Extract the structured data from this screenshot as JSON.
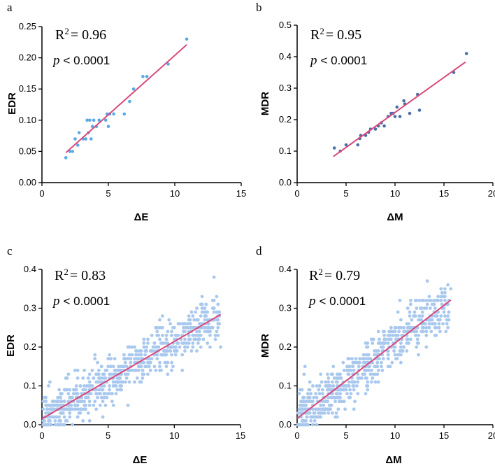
{
  "chart_data": [
    {
      "type": "scatter",
      "panel": "a",
      "xlabel": "ΔE",
      "ylabel": "EDR",
      "xlim": [
        0,
        15
      ],
      "ylim": [
        0,
        0.25
      ],
      "xticks": [
        0,
        5,
        10,
        15
      ],
      "yticks": [
        0.0,
        0.05,
        0.1,
        0.15,
        0.2,
        0.25
      ],
      "ytick_labels": [
        "0.00",
        "0.05",
        "0.10",
        "0.15",
        "0.20",
        "0.25"
      ],
      "r2_label": "R",
      "r2_sup": "2",
      "r2_value": "= 0.96",
      "p_symbol": "p",
      "p_text": "< 0.0001",
      "point_color": "#5aa9e6",
      "fit_color": "#d9497b",
      "fit": {
        "x": [
          1.8,
          10.9
        ],
        "y": [
          0.048,
          0.221
        ]
      },
      "points": [
        [
          1.8,
          0.04
        ],
        [
          2.1,
          0.05
        ],
        [
          2.3,
          0.05
        ],
        [
          2.5,
          0.07
        ],
        [
          2.7,
          0.06
        ],
        [
          2.8,
          0.08
        ],
        [
          3.1,
          0.07
        ],
        [
          3.3,
          0.07
        ],
        [
          3.4,
          0.1
        ],
        [
          3.5,
          0.08
        ],
        [
          3.6,
          0.1
        ],
        [
          3.7,
          0.07
        ],
        [
          3.8,
          0.09
        ],
        [
          3.9,
          0.1
        ],
        [
          4.1,
          0.09
        ],
        [
          4.3,
          0.1
        ],
        [
          4.8,
          0.1
        ],
        [
          4.9,
          0.11
        ],
        [
          5.0,
          0.09
        ],
        [
          5.1,
          0.11
        ],
        [
          5.4,
          0.11
        ],
        [
          6.2,
          0.11
        ],
        [
          6.6,
          0.13
        ],
        [
          6.9,
          0.15
        ],
        [
          7.6,
          0.17
        ],
        [
          7.9,
          0.17
        ],
        [
          9.5,
          0.19
        ],
        [
          10.9,
          0.23
        ]
      ]
    },
    {
      "type": "scatter",
      "panel": "b",
      "xlabel": "ΔM",
      "ylabel": "MDR",
      "xlim": [
        0,
        20
      ],
      "ylim": [
        0,
        0.5
      ],
      "xticks": [
        0,
        5,
        10,
        15,
        20
      ],
      "yticks": [
        0.0,
        0.1,
        0.2,
        0.3,
        0.4,
        0.5
      ],
      "ytick_labels": [
        "0.0",
        "0.1",
        "0.2",
        "0.3",
        "0.4",
        "0.5"
      ],
      "r2_label": "R",
      "r2_sup": "2",
      "r2_value": "= 0.95",
      "p_symbol": "p",
      "p_text": "< 0.0001",
      "point_color": "#4a6fa5",
      "fit_color": "#d9497b",
      "fit": {
        "x": [
          3.7,
          17.2
        ],
        "y": [
          0.083,
          0.383
        ]
      },
      "points": [
        [
          3.8,
          0.11
        ],
        [
          4.4,
          0.1
        ],
        [
          5.0,
          0.12
        ],
        [
          6.2,
          0.12
        ],
        [
          6.4,
          0.14
        ],
        [
          6.5,
          0.15
        ],
        [
          7.0,
          0.15
        ],
        [
          7.3,
          0.16
        ],
        [
          7.5,
          0.17
        ],
        [
          8.0,
          0.17
        ],
        [
          8.3,
          0.18
        ],
        [
          8.6,
          0.19
        ],
        [
          8.9,
          0.18
        ],
        [
          9.3,
          0.21
        ],
        [
          9.6,
          0.22
        ],
        [
          9.8,
          0.22
        ],
        [
          10.0,
          0.21
        ],
        [
          10.2,
          0.24
        ],
        [
          10.5,
          0.21
        ],
        [
          10.9,
          0.26
        ],
        [
          11.0,
          0.25
        ],
        [
          11.5,
          0.22
        ],
        [
          12.3,
          0.28
        ],
        [
          12.5,
          0.23
        ],
        [
          16.0,
          0.35
        ],
        [
          17.3,
          0.41
        ]
      ]
    },
    {
      "type": "scatter",
      "panel": "c",
      "xlabel": "ΔE",
      "ylabel": "EDR",
      "xlim": [
        0,
        15
      ],
      "ylim": [
        0,
        0.4
      ],
      "xticks": [
        0,
        5,
        10,
        15
      ],
      "yticks": [
        0.0,
        0.1,
        0.2,
        0.3,
        0.4
      ],
      "ytick_labels": [
        "0.0",
        "0.1",
        "0.2",
        "0.3",
        "0.4"
      ],
      "r2_label": "R",
      "r2_sup": "2",
      "r2_value": "= 0.83",
      "p_symbol": "p",
      "p_text": "< 0.0001",
      "point_color": "#a9c8ee",
      "fit_color": "#c23a6e",
      "fit": {
        "x": [
          0,
          13.5
        ],
        "y": [
          0.015,
          0.284
        ]
      },
      "cloud": {
        "n": 700,
        "x_min": 0.1,
        "x_max": 13.4,
        "slope": 0.0199,
        "intercept": 0.015,
        "spread": 0.028,
        "step": 0.01,
        "seed": 7
      },
      "points": [
        [
          13.2,
          0.33
        ],
        [
          12.1,
          0.31
        ],
        [
          13.5,
          0.2
        ],
        [
          9.1,
          0.28
        ],
        [
          1.2,
          0.0
        ],
        [
          3.6,
          0.01
        ],
        [
          0.3,
          0.05
        ],
        [
          6.5,
          0.05
        ]
      ]
    },
    {
      "type": "scatter",
      "panel": "d",
      "xlabel": "ΔM",
      "ylabel": "MDR",
      "xlim": [
        0,
        20
      ],
      "ylim": [
        0,
        0.4
      ],
      "xticks": [
        0,
        5,
        10,
        15,
        20
      ],
      "yticks": [
        0.0,
        0.1,
        0.2,
        0.3,
        0.4
      ],
      "ytick_labels": [
        "0.0",
        "0.1",
        "0.2",
        "0.3",
        "0.4"
      ],
      "r2_label": "R",
      "r2_sup": "2",
      "r2_value": "= 0.79",
      "p_symbol": "p",
      "p_text": "< 0.0001",
      "point_color": "#a9c8ee",
      "fit_color": "#c23a6e",
      "fit": {
        "x": [
          0,
          15.7
        ],
        "y": [
          0.016,
          0.321
        ]
      },
      "cloud": {
        "n": 650,
        "x_min": 0.1,
        "x_max": 15.5,
        "slope": 0.0194,
        "intercept": 0.016,
        "spread": 0.033,
        "step": 0.01,
        "seed": 11
      },
      "points": [
        [
          15.7,
          0.35
        ],
        [
          13.5,
          0.25
        ],
        [
          10.5,
          0.32
        ],
        [
          0.2,
          0.08
        ],
        [
          0.4,
          0.06
        ],
        [
          0.1,
          0.0
        ],
        [
          0.6,
          0.0
        ],
        [
          14.2,
          0.23
        ]
      ]
    }
  ]
}
